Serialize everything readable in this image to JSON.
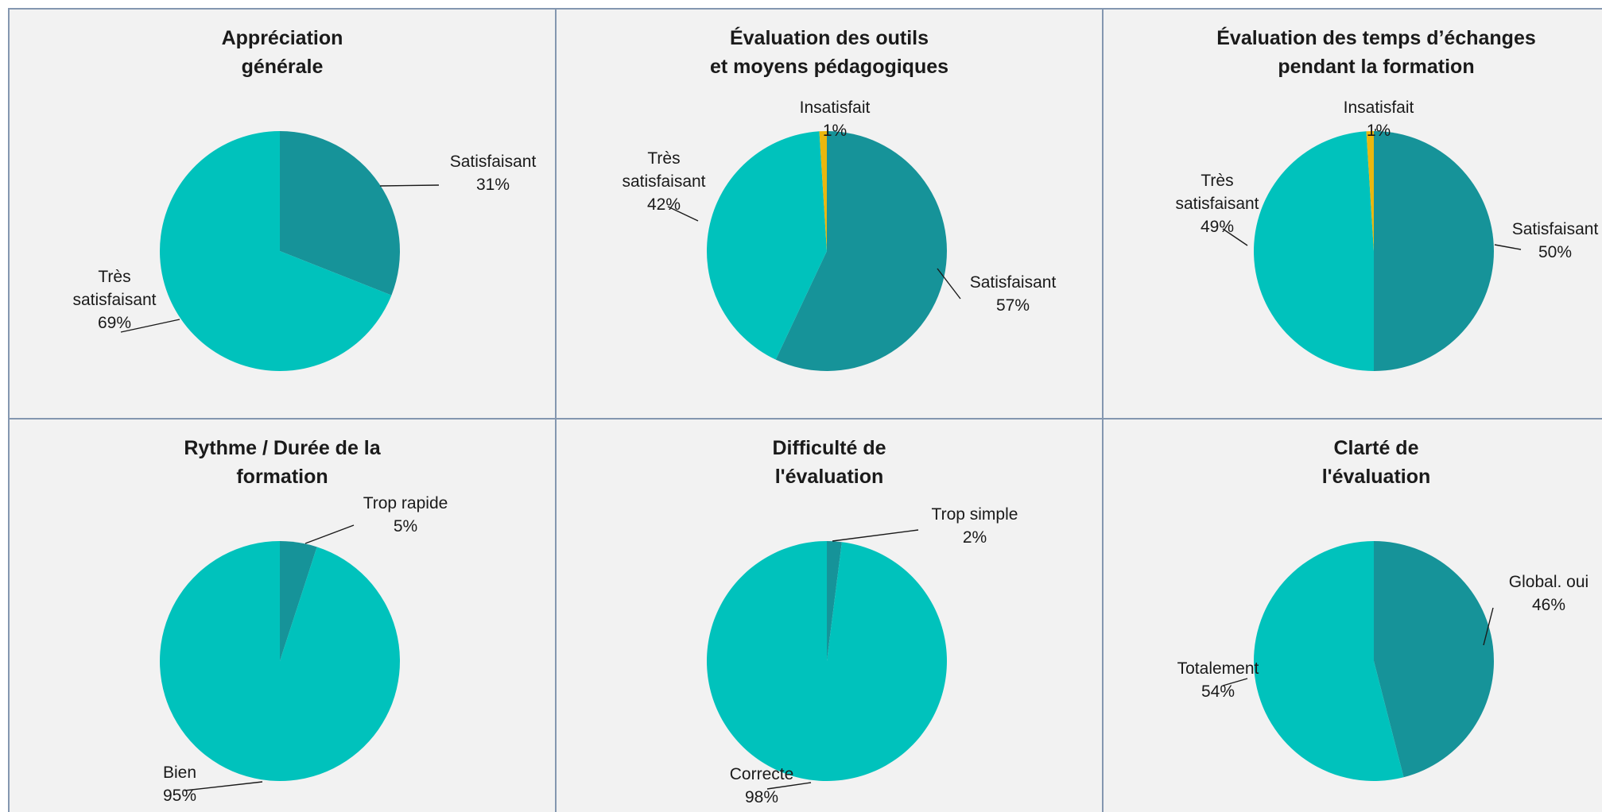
{
  "colors": {
    "panel_bg": "#f2f2f2",
    "border": "#8497b0",
    "tres_satisfaisant": "#00c2bc",
    "satisfaisant": "#169399",
    "insatisfait": "#ebb70e"
  },
  "chart_data": [
    {
      "type": "pie",
      "title_lines": [
        "Appréciation",
        "générale"
      ],
      "slices": [
        {
          "label_lines": [
            "Satisfaisant"
          ],
          "percent_label": "31%",
          "value": 31,
          "color": "#169399",
          "anchor": "start"
        },
        {
          "label_lines": [
            "Très",
            "satisfaisant"
          ],
          "percent_label": "69%",
          "value": 69,
          "color": "#00c2bc",
          "anchor": "end"
        }
      ]
    },
    {
      "type": "pie",
      "title_lines": [
        "Évaluation des outils",
        "et moyens pédagogiques"
      ],
      "slices": [
        {
          "label_lines": [
            "Satisfaisant"
          ],
          "percent_label": "57%",
          "value": 57,
          "color": "#169399",
          "anchor": "start"
        },
        {
          "label_lines": [
            "Très",
            "satisfaisant"
          ],
          "percent_label": "42%",
          "value": 42,
          "color": "#00c2bc",
          "anchor": "end"
        },
        {
          "label_lines": [
            "Insatisfait"
          ],
          "percent_label": "1%",
          "value": 1,
          "color": "#ebb70e",
          "anchor": "middle"
        }
      ]
    },
    {
      "type": "pie",
      "title_lines": [
        "Évaluation des temps d’échanges",
        "pendant la formation"
      ],
      "slices": [
        {
          "label_lines": [
            "Satisfaisant"
          ],
          "percent_label": "50%",
          "value": 50,
          "color": "#169399",
          "anchor": "start"
        },
        {
          "label_lines": [
            "Très",
            "satisfaisant"
          ],
          "percent_label": "49%",
          "value": 49,
          "color": "#00c2bc",
          "anchor": "end"
        },
        {
          "label_lines": [
            "Insatisfait"
          ],
          "percent_label": "1%",
          "value": 1,
          "color": "#ebb70e",
          "anchor": "middle"
        }
      ]
    },
    {
      "type": "pie",
      "title_lines": [
        "Rythme / Durée de la",
        "formation"
      ],
      "slices": [
        {
          "label_lines": [
            "Trop rapide"
          ],
          "percent_label": "5%",
          "value": 5,
          "color": "#169399",
          "anchor": "start"
        },
        {
          "label_lines": [
            "Bien"
          ],
          "percent_label": "95%",
          "value": 95,
          "color": "#00c2bc",
          "anchor": "end"
        }
      ]
    },
    {
      "type": "pie",
      "title_lines": [
        "Difficulté de",
        "l'évaluation"
      ],
      "slices": [
        {
          "label_lines": [
            "Trop simple"
          ],
          "percent_label": "2%",
          "value": 2,
          "color": "#169399",
          "anchor": "start"
        },
        {
          "label_lines": [
            "Correcte"
          ],
          "percent_label": "98%",
          "value": 98,
          "color": "#00c2bc",
          "anchor": "end"
        }
      ]
    },
    {
      "type": "pie",
      "title_lines": [
        "Clarté de",
        "l'évaluation"
      ],
      "slices": [
        {
          "label_lines": [
            "Global. oui"
          ],
          "percent_label": "46%",
          "value": 46,
          "color": "#169399",
          "anchor": "start"
        },
        {
          "label_lines": [
            "Totalement"
          ],
          "percent_label": "54%",
          "value": 54,
          "color": "#00c2bc",
          "anchor": "end"
        }
      ]
    }
  ]
}
